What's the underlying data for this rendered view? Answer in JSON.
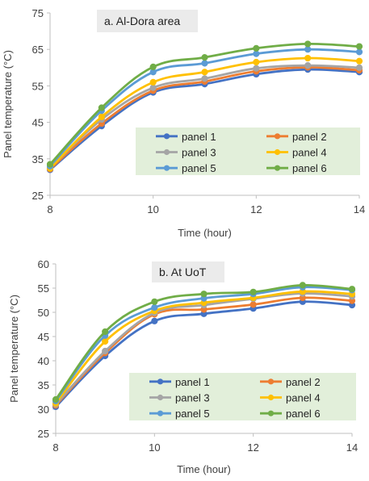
{
  "chart_data": [
    {
      "type": "line",
      "title": "a. Al-Dora area",
      "xlabel": "Time (hour)",
      "ylabel": "Panel temperature (°C)",
      "xlim": [
        8,
        14
      ],
      "ylim": [
        25,
        75
      ],
      "xticks": [
        8,
        10,
        12,
        14
      ],
      "yticks": [
        25,
        35,
        45,
        55,
        65,
        75
      ],
      "x": [
        8,
        9,
        10,
        11,
        12,
        13,
        14
      ],
      "legend_position": "lower-right",
      "grid": false,
      "series": [
        {
          "name": "panel 1",
          "color": "#4472C4",
          "values": [
            32.0,
            44.0,
            53.2,
            55.5,
            58.2,
            59.5,
            58.8
          ]
        },
        {
          "name": "panel 2",
          "color": "#ED7D31",
          "values": [
            32.2,
            44.7,
            53.7,
            56.2,
            59.0,
            60.1,
            59.3
          ]
        },
        {
          "name": "panel 3",
          "color": "#A5A5A5",
          "values": [
            32.5,
            45.8,
            54.5,
            57.0,
            59.8,
            60.6,
            60.0
          ]
        },
        {
          "name": "panel 4",
          "color": "#FFC000",
          "values": [
            32.4,
            46.5,
            56.0,
            58.8,
            61.5,
            62.6,
            61.8
          ]
        },
        {
          "name": "panel 5",
          "color": "#5B9BD5",
          "values": [
            33.0,
            48.2,
            58.8,
            61.2,
            63.8,
            65.0,
            64.3
          ]
        },
        {
          "name": "panel 6",
          "color": "#70AD47",
          "values": [
            33.5,
            49.0,
            60.2,
            62.8,
            65.3,
            66.5,
            65.8
          ]
        }
      ]
    },
    {
      "type": "line",
      "title": "b. At UoT",
      "xlabel": "Time (hour)",
      "ylabel": "Panel temperature (°C)",
      "xlim": [
        8,
        14
      ],
      "ylim": [
        25,
        60
      ],
      "xticks": [
        8,
        10,
        12,
        14
      ],
      "yticks": [
        25,
        30,
        35,
        40,
        45,
        50,
        55,
        60
      ],
      "x": [
        8,
        9,
        10,
        11,
        12,
        13,
        14
      ],
      "legend_position": "lower-right",
      "grid": false,
      "series": [
        {
          "name": "panel 1",
          "color": "#4472C4",
          "values": [
            30.5,
            41.0,
            48.2,
            49.7,
            50.8,
            52.2,
            51.5
          ]
        },
        {
          "name": "panel 2",
          "color": "#ED7D31",
          "values": [
            30.8,
            41.6,
            49.6,
            50.6,
            51.6,
            53.0,
            52.4
          ]
        },
        {
          "name": "panel 3",
          "color": "#A5A5A5",
          "values": [
            31.0,
            42.0,
            49.9,
            51.5,
            52.8,
            53.9,
            53.3
          ]
        },
        {
          "name": "panel 4",
          "color": "#FFC000",
          "values": [
            31.2,
            44.0,
            50.3,
            52.0,
            53.0,
            54.3,
            53.8
          ]
        },
        {
          "name": "panel 5",
          "color": "#5B9BD5",
          "values": [
            31.7,
            45.2,
            51.0,
            52.9,
            53.8,
            55.2,
            54.6
          ]
        },
        {
          "name": "panel 6",
          "color": "#70AD47",
          "values": [
            32.0,
            46.0,
            52.2,
            53.8,
            54.2,
            55.6,
            54.8
          ]
        }
      ]
    }
  ]
}
